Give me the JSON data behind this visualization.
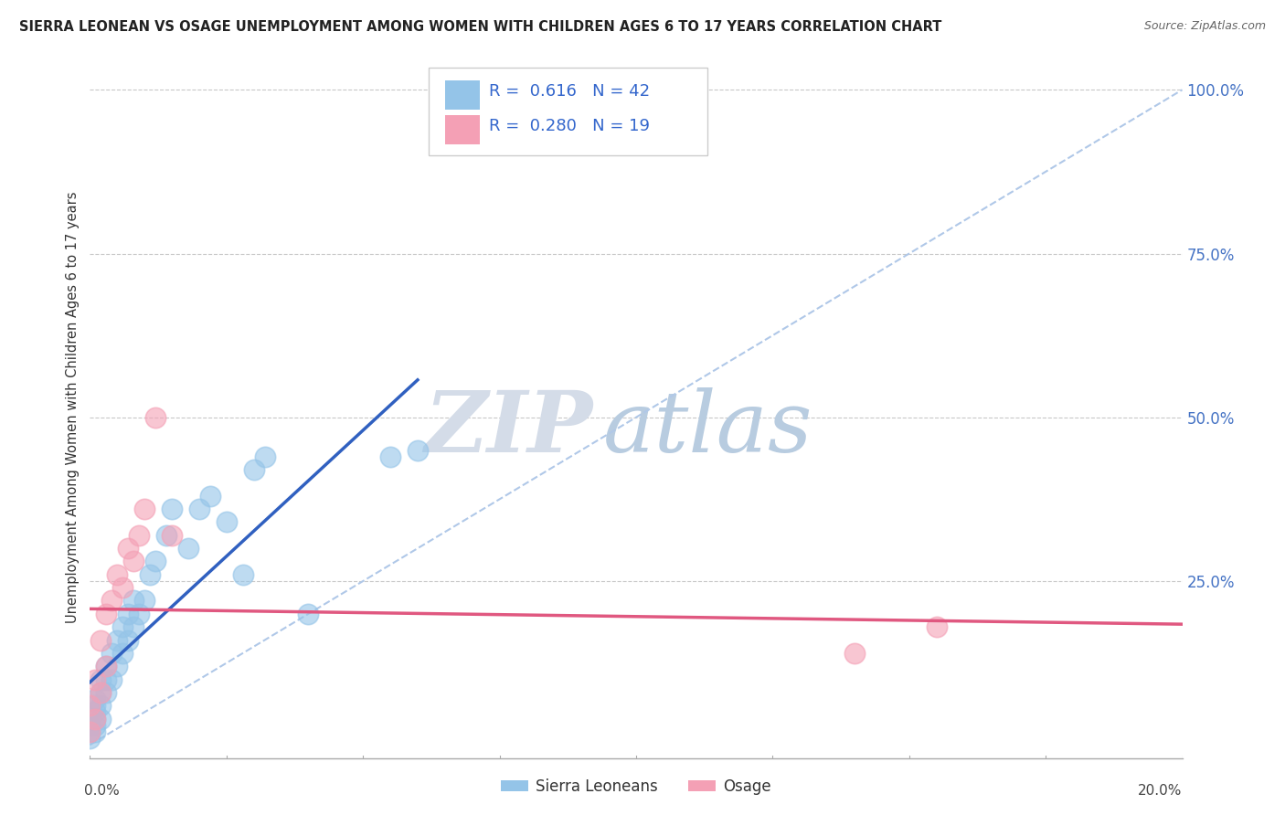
{
  "title": "SIERRA LEONEAN VS OSAGE UNEMPLOYMENT AMONG WOMEN WITH CHILDREN AGES 6 TO 17 YEARS CORRELATION CHART",
  "source": "Source: ZipAtlas.com",
  "ylabel": "Unemployment Among Women with Children Ages 6 to 17 years",
  "xlim": [
    0.0,
    0.2
  ],
  "ylim": [
    -0.02,
    1.05
  ],
  "group1_name": "Sierra Leoneans",
  "group2_name": "Osage",
  "group1_color": "#94c4e8",
  "group2_color": "#f4a0b5",
  "group1_line_color": "#3060c0",
  "group2_line_color": "#e05880",
  "diag_color": "#b0c8e8",
  "bg_color": "#ffffff",
  "watermark_zip_color": "#d4dce8",
  "watermark_atlas_color": "#b8cce0",
  "group1_x": [
    0.0,
    0.0,
    0.0,
    0.001,
    0.001,
    0.001,
    0.001,
    0.001,
    0.001,
    0.002,
    0.002,
    0.002,
    0.002,
    0.003,
    0.003,
    0.003,
    0.004,
    0.004,
    0.005,
    0.005,
    0.006,
    0.006,
    0.007,
    0.007,
    0.008,
    0.008,
    0.009,
    0.01,
    0.011,
    0.012,
    0.014,
    0.015,
    0.018,
    0.02,
    0.022,
    0.025,
    0.028,
    0.03,
    0.032,
    0.04,
    0.055,
    0.06
  ],
  "group1_y": [
    0.01,
    0.02,
    0.03,
    0.02,
    0.03,
    0.04,
    0.05,
    0.06,
    0.07,
    0.04,
    0.06,
    0.08,
    0.1,
    0.08,
    0.1,
    0.12,
    0.1,
    0.14,
    0.12,
    0.16,
    0.14,
    0.18,
    0.16,
    0.2,
    0.18,
    0.22,
    0.2,
    0.22,
    0.26,
    0.28,
    0.32,
    0.36,
    0.3,
    0.36,
    0.38,
    0.34,
    0.26,
    0.42,
    0.44,
    0.2,
    0.44,
    0.45
  ],
  "group2_x": [
    0.0,
    0.0,
    0.001,
    0.001,
    0.002,
    0.002,
    0.003,
    0.003,
    0.004,
    0.005,
    0.006,
    0.007,
    0.008,
    0.009,
    0.01,
    0.012,
    0.015,
    0.14,
    0.155
  ],
  "group2_y": [
    0.02,
    0.06,
    0.04,
    0.1,
    0.08,
    0.16,
    0.12,
    0.2,
    0.22,
    0.26,
    0.24,
    0.3,
    0.28,
    0.32,
    0.36,
    0.5,
    0.32,
    0.14,
    0.18
  ]
}
